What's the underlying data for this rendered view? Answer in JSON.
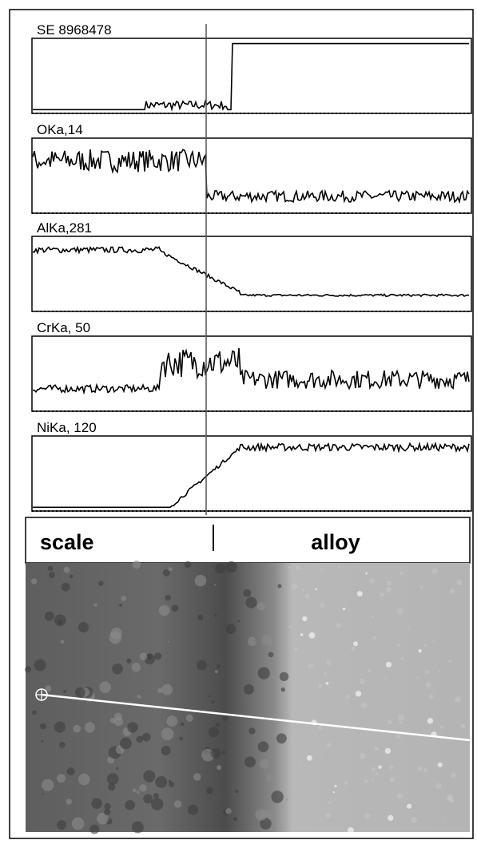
{
  "panels": [
    {
      "label": "SE 8968478"
    },
    {
      "label": "OKa,14"
    },
    {
      "label": "AlKa,281"
    },
    {
      "label": "CrKa, 50"
    },
    {
      "label": "NiKa, 120"
    }
  ],
  "regions": {
    "left": "scale",
    "right": "alloy"
  }
}
